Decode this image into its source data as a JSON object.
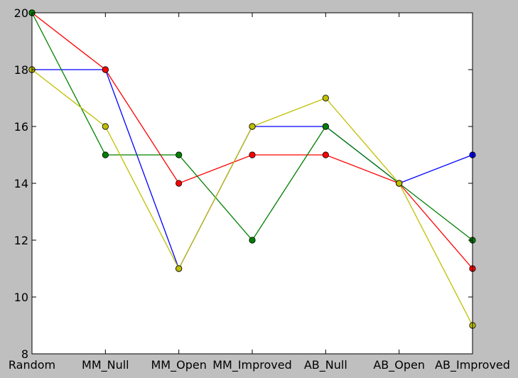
{
  "chart_data": {
    "type": "line",
    "title": "",
    "xlabel": "",
    "ylabel": "",
    "categories": [
      "Random",
      "MM_Null",
      "MM_Open",
      "MM_Improved",
      "AB_Null",
      "AB_Open",
      "AB_Improved"
    ],
    "ylim": [
      8,
      20
    ],
    "yticks": [
      8,
      10,
      12,
      14,
      16,
      18,
      20
    ],
    "grid": false,
    "legend": "none",
    "series": [
      {
        "color": "#0000ff",
        "values": [
          18,
          18,
          11,
          16,
          16,
          14,
          15
        ]
      },
      {
        "color": "#ff0000",
        "values": [
          20,
          18,
          14,
          15,
          15,
          14,
          11
        ]
      },
      {
        "color": "#008000",
        "values": [
          20,
          15,
          15,
          12,
          16,
          14,
          12
        ]
      },
      {
        "color": "#bfbf00",
        "values": [
          18,
          16,
          11,
          16,
          17,
          14,
          9
        ]
      }
    ]
  }
}
